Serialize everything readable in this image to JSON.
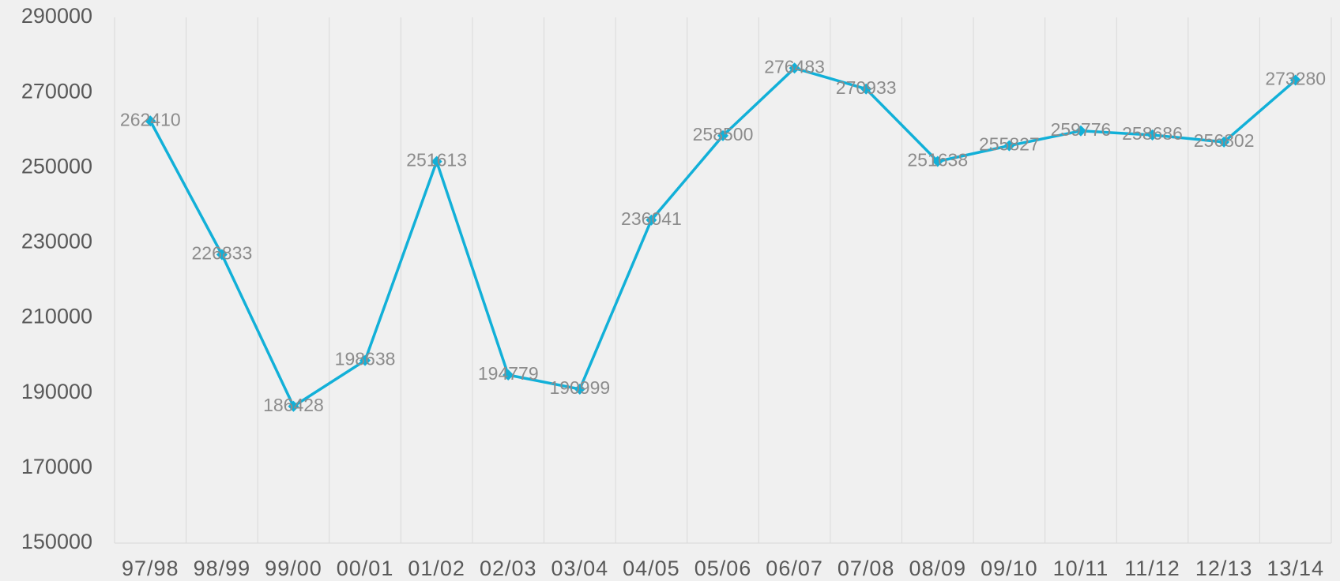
{
  "chart_data": {
    "type": "line",
    "categories": [
      "97/98",
      "98/99",
      "99/00",
      "00/01",
      "01/02",
      "02/03",
      "03/04",
      "04/05",
      "05/06",
      "06/07",
      "07/08",
      "08/09",
      "09/10",
      "10/11",
      "11/12",
      "12/13",
      "13/14"
    ],
    "series": [
      {
        "color": "#12b0d8",
        "values": [
          262410,
          226833,
          186428,
          198638,
          251613,
          194779,
          190999,
          236041,
          258500,
          276483,
          270933,
          251638,
          255827,
          259776,
          258686,
          256802,
          273280
        ]
      }
    ],
    "ylim": [
      150000,
      290000
    ],
    "yticks": [
      150000,
      170000,
      190000,
      210000,
      230000,
      250000,
      270000,
      290000
    ],
    "grid": false
  }
}
